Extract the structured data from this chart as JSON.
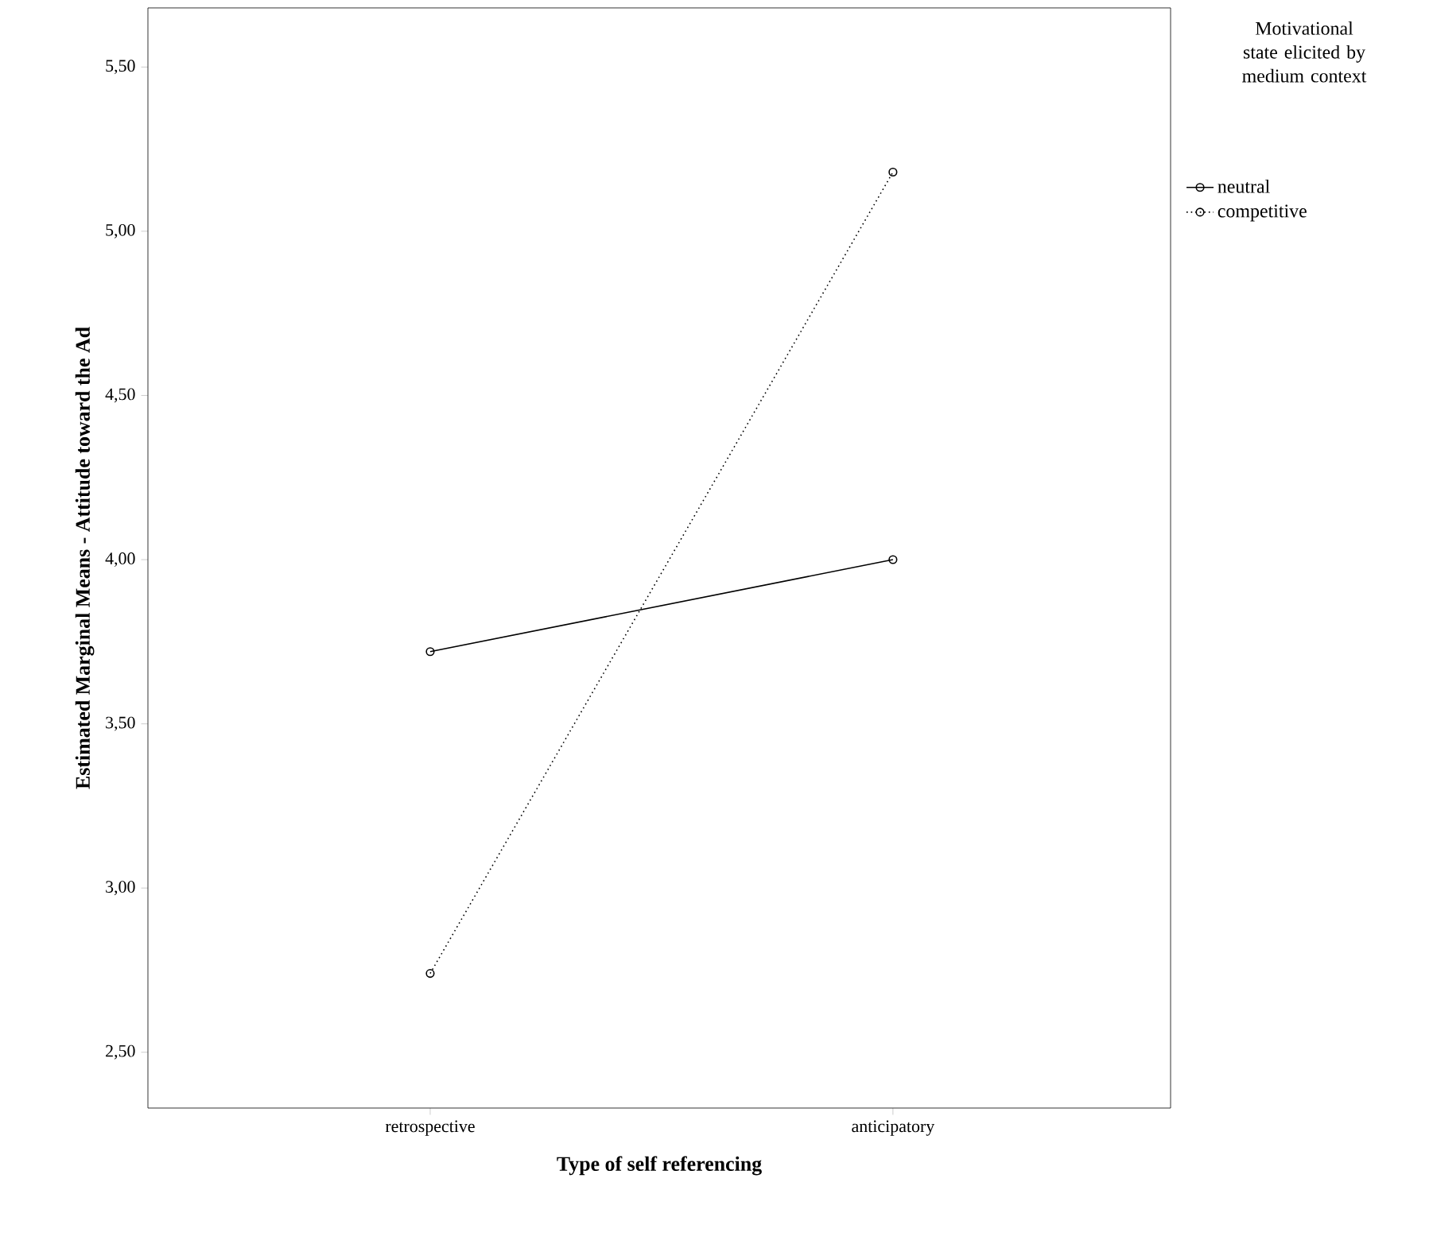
{
  "chart_data": {
    "type": "line",
    "xlabel": "Type of self referencing",
    "ylabel": "Estimated Marginal Means - Attitude toward the Ad",
    "legend_title": "Motivational state elicited by medium context",
    "legend": "right",
    "marker": "circle",
    "categories": [
      "retrospective",
      "anticipatory"
    ],
    "series": [
      {
        "name": "neutral",
        "color": "#000000",
        "line_style": "solid",
        "values": [
          3.72,
          4.0
        ]
      },
      {
        "name": "competitive",
        "color": "#000000",
        "line_style": "dotted",
        "values": [
          2.74,
          5.18
        ]
      }
    ],
    "ylim": [
      2.33,
      5.68
    ],
    "yticks": [
      {
        "value": 2.5,
        "label": "2,50"
      },
      {
        "value": 3.0,
        "label": "3,00"
      },
      {
        "value": 3.5,
        "label": "3,50"
      },
      {
        "value": 4.0,
        "label": "4,00"
      },
      {
        "value": 4.5,
        "label": "4,50"
      },
      {
        "value": 5.0,
        "label": "5,00"
      },
      {
        "value": 5.5,
        "label": "5,50"
      }
    ]
  }
}
